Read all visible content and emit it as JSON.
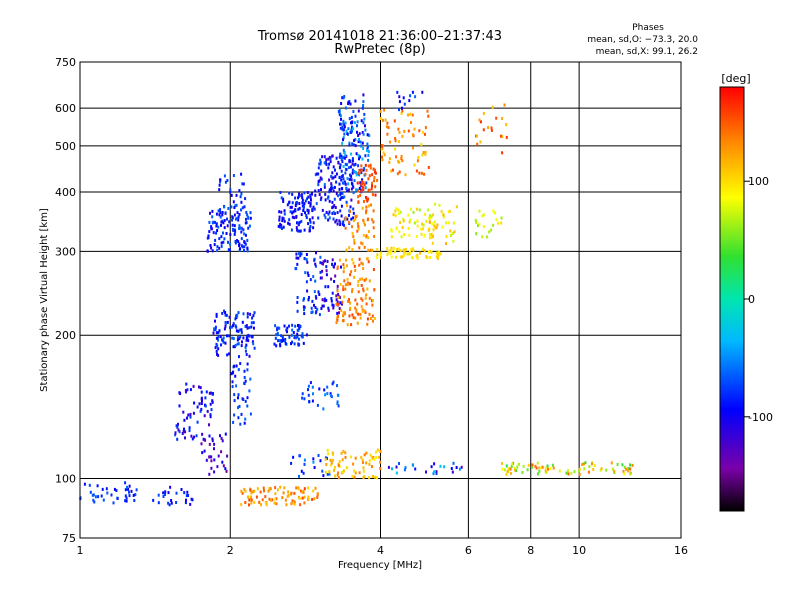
{
  "chart_data": {
    "type": "scatter",
    "title": "Tromsø 20141018 21:36:00–21:37:43",
    "subtitle": "RwPretec (8p)",
    "xlabel": "Frequency [MHz]",
    "ylabel": "Stationary phase Virtual Height [km]",
    "x_scale": "log",
    "y_scale": "log",
    "xlim": [
      1,
      16
    ],
    "ylim": [
      75,
      750
    ],
    "x_ticks": [
      1,
      2,
      4,
      6,
      8,
      10,
      16
    ],
    "x_tick_labels": [
      "1",
      "2",
      "4",
      "6",
      "8",
      "10",
      "16"
    ],
    "y_ticks": [
      75,
      100,
      200,
      300,
      400,
      500,
      600,
      750
    ],
    "y_tick_labels": [
      "75",
      "100",
      "200",
      "300",
      "400",
      "500",
      "600",
      "750"
    ],
    "grid": true,
    "stats_header": "Phases",
    "stats_lines": [
      "mean, sd,O: −73.3, 20.0",
      "mean, sd,X:  99.1, 26.2"
    ],
    "colorbar": {
      "label": "[deg]",
      "range": [
        -180,
        180
      ],
      "ticks": [
        100,
        0,
        -100
      ],
      "tick_labels": [
        "100",
        "0",
        "-100"
      ]
    },
    "clusters": [
      {
        "f": [
          1.0,
          1.3
        ],
        "h": [
          88,
          98
        ],
        "ph": [
          -100,
          -60
        ],
        "n": 40
      },
      {
        "f": [
          1.4,
          1.75
        ],
        "h": [
          88,
          96
        ],
        "ph": [
          -110,
          -70
        ],
        "n": 25
      },
      {
        "f": [
          1.55,
          1.85
        ],
        "h": [
          120,
          160
        ],
        "ph": [
          -130,
          -70
        ],
        "n": 70
      },
      {
        "f": [
          1.75,
          1.98
        ],
        "h": [
          100,
          125
        ],
        "ph": [
          -150,
          -90
        ],
        "n": 30
      },
      {
        "f": [
          1.8,
          2.2
        ],
        "h": [
          300,
          370
        ],
        "ph": [
          -110,
          -60
        ],
        "n": 120
      },
      {
        "f": [
          1.85,
          2.25
        ],
        "h": [
          180,
          225
        ],
        "ph": [
          -110,
          -60
        ],
        "n": 110
      },
      {
        "f": [
          1.9,
          2.15
        ],
        "h": [
          370,
          440
        ],
        "ph": [
          -100,
          -60
        ],
        "n": 30
      },
      {
        "f": [
          2.0,
          2.2
        ],
        "h": [
          130,
          175
        ],
        "ph": [
          -100,
          -60
        ],
        "n": 40
      },
      {
        "f": [
          2.1,
          3.0
        ],
        "h": [
          88,
          96
        ],
        "ph": [
          100,
          160
        ],
        "n": 90
      },
      {
        "f": [
          2.5,
          2.95
        ],
        "h": [
          330,
          400
        ],
        "ph": [
          -110,
          -70
        ],
        "n": 110
      },
      {
        "f": [
          2.45,
          2.85
        ],
        "h": [
          190,
          210
        ],
        "ph": [
          -100,
          -60
        ],
        "n": 60
      },
      {
        "f": [
          2.7,
          3.05
        ],
        "h": [
          220,
          300
        ],
        "ph": [
          -110,
          -60
        ],
        "n": 60
      },
      {
        "f": [
          2.75,
          3.3
        ],
        "h": [
          140,
          160
        ],
        "ph": [
          -100,
          -50
        ],
        "n": 30
      },
      {
        "f": [
          2.6,
          3.2
        ],
        "h": [
          100,
          112
        ],
        "ph": [
          -100,
          -40
        ],
        "n": 20
      },
      {
        "f": [
          2.95,
          3.55
        ],
        "h": [
          340,
          480
        ],
        "ph": [
          -120,
          -60
        ],
        "n": 170
      },
      {
        "f": [
          3.05,
          3.35
        ],
        "h": [
          220,
          290
        ],
        "ph": [
          -140,
          -80
        ],
        "n": 50
      },
      {
        "f": [
          3.3,
          3.75
        ],
        "h": [
          500,
          640
        ],
        "ph": [
          -120,
          -50
        ],
        "n": 60
      },
      {
        "f": [
          3.3,
          3.8
        ],
        "h": [
          400,
          560
        ],
        "ph": [
          -100,
          -30
        ],
        "n": 80
      },
      {
        "f": [
          3.25,
          3.9
        ],
        "h": [
          210,
          290
        ],
        "ph": [
          110,
          160
        ],
        "n": 110
      },
      {
        "f": [
          3.4,
          3.9
        ],
        "h": [
          300,
          380
        ],
        "ph": [
          110,
          150
        ],
        "n": 50
      },
      {
        "f": [
          3.1,
          4.0
        ],
        "h": [
          100,
          115
        ],
        "ph": [
          90,
          140
        ],
        "n": 70
      },
      {
        "f": [
          3.6,
          3.95
        ],
        "h": [
          380,
          460
        ],
        "ph": [
          140,
          180
        ],
        "n": 50
      },
      {
        "f": [
          3.9,
          5.3
        ],
        "h": [
          290,
          305
        ],
        "ph": [
          85,
          110
        ],
        "n": 60
      },
      {
        "f": [
          4.0,
          5.0
        ],
        "h": [
          430,
          600
        ],
        "ph": [
          100,
          160
        ],
        "n": 70
      },
      {
        "f": [
          4.2,
          5.2
        ],
        "h": [
          320,
          370
        ],
        "ph": [
          60,
          110
        ],
        "n": 55
      },
      {
        "f": [
          5.0,
          5.7
        ],
        "h": [
          310,
          380
        ],
        "ph": [
          70,
          120
        ],
        "n": 30
      },
      {
        "f": [
          6.2,
          7.0
        ],
        "h": [
          320,
          370
        ],
        "ph": [
          50,
          100
        ],
        "n": 20
      },
      {
        "f": [
          6.2,
          7.2
        ],
        "h": [
          480,
          620
        ],
        "ph": [
          110,
          170
        ],
        "n": 20
      },
      {
        "f": [
          4.1,
          5.9
        ],
        "h": [
          102,
          108
        ],
        "ph": [
          -140,
          -20
        ],
        "n": 25
      },
      {
        "f": [
          7.0,
          12.8
        ],
        "h": [
          102,
          108
        ],
        "ph": [
          30,
          150
        ],
        "n": 80
      },
      {
        "f": [
          4.3,
          5.3
        ],
        "h": [
          590,
          650
        ],
        "ph": [
          -110,
          -60
        ],
        "n": 12
      }
    ]
  }
}
